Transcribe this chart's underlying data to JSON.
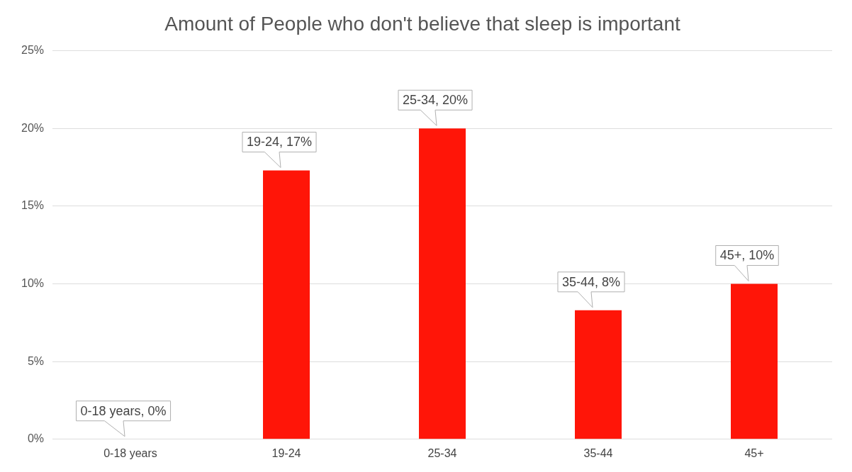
{
  "chart_data": {
    "type": "bar",
    "title": "Amount of People who don't believe that sleep is important",
    "categories": [
      "0-18 years",
      "19-24",
      "25-34",
      "35-44",
      "45+"
    ],
    "values": [
      0,
      17.3,
      20,
      8.3,
      10
    ],
    "value_labels": [
      "0-18 years, 0%",
      "19-24, 17%",
      "25-34, 20%",
      "35-44, 8%",
      "45+, 10%"
    ],
    "color": "#ff1508",
    "ylim": [
      0,
      25
    ],
    "yticks": [
      {
        "value": 0,
        "label": "0%"
      },
      {
        "value": 5,
        "label": "5%"
      },
      {
        "value": 10,
        "label": "10%"
      },
      {
        "value": 15,
        "label": "15%"
      },
      {
        "value": 20,
        "label": "20%"
      },
      {
        "value": 25,
        "label": "25%"
      }
    ],
    "grid": "y",
    "legend": false
  }
}
